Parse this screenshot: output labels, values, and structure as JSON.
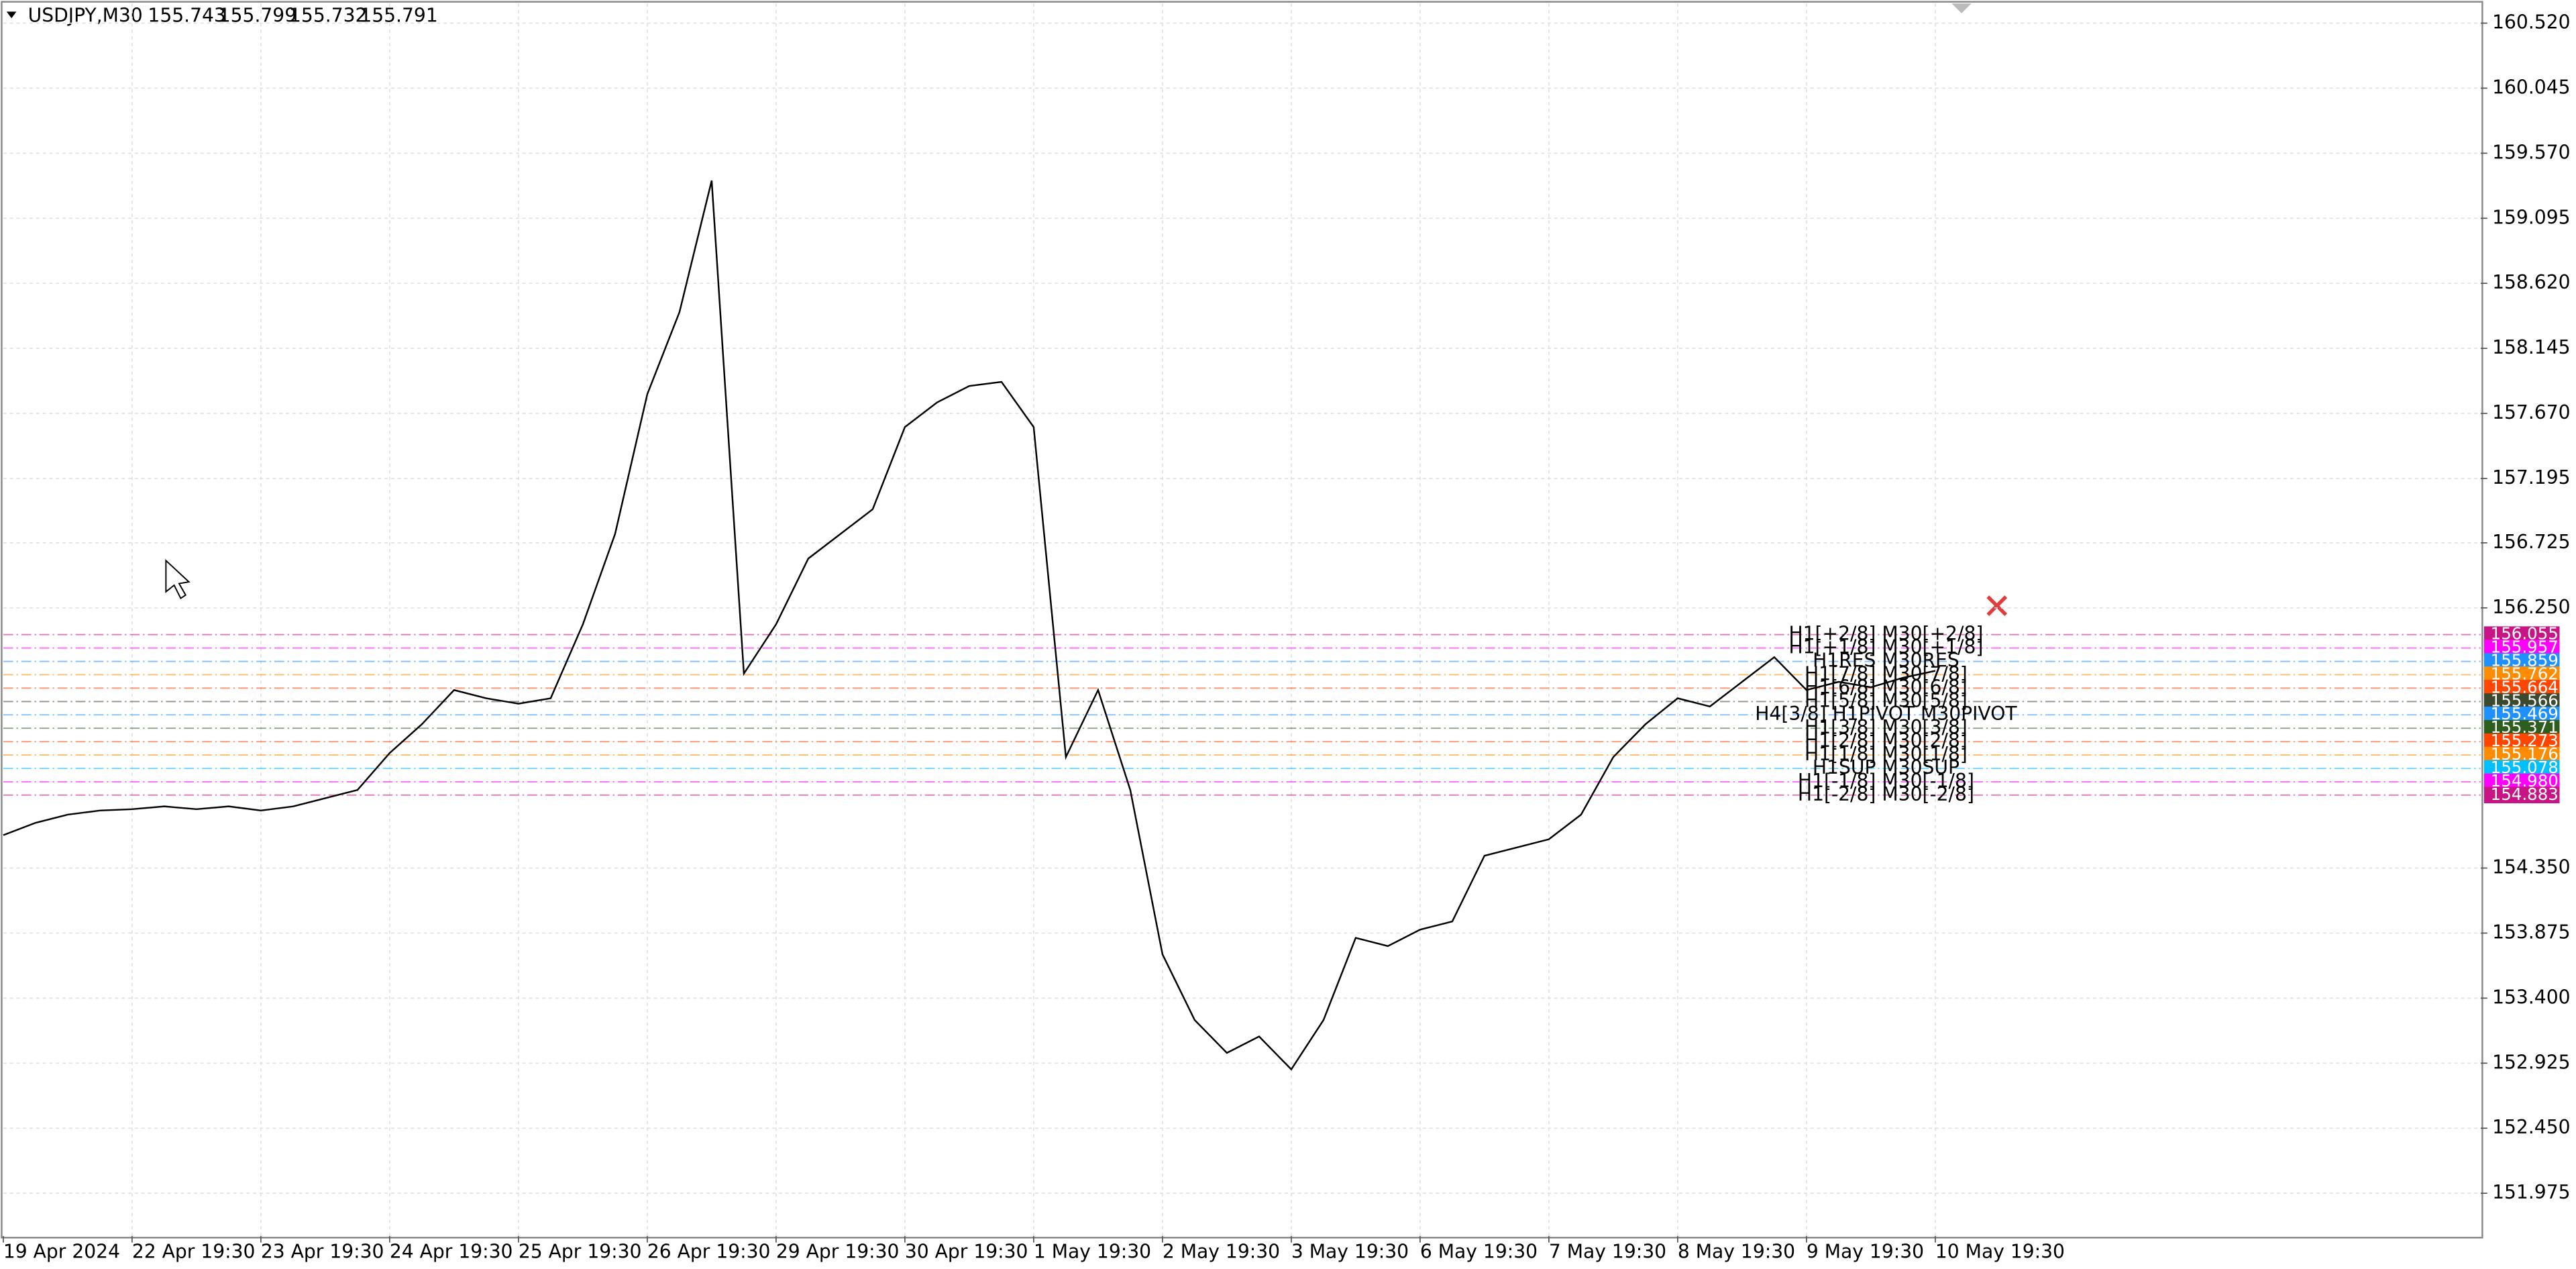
{
  "chart_data": {
    "type": "line",
    "title": "USDJPY,M30",
    "quote": [
      155.743,
      155.799,
      155.732,
      155.791
    ],
    "color": "#000000",
    "categories": [
      "19 Apr 2024",
      null,
      null,
      null,
      "22 Apr 19:30",
      null,
      null,
      null,
      "23 Apr 19:30",
      null,
      null,
      null,
      "24 Apr 19:30",
      null,
      null,
      null,
      "25 Apr 19:30",
      null,
      null,
      null,
      "26 Apr 19:30",
      null,
      null,
      null,
      "29 Apr 19:30",
      null,
      null,
      null,
      "30 Apr 19:30",
      null,
      null,
      null,
      "1 May 19:30",
      null,
      null,
      null,
      "2 May 19:30",
      null,
      null,
      null,
      "3 May 19:30",
      null,
      null,
      null,
      "6 May 19:30",
      null,
      null,
      null,
      "7 May 19:30",
      null,
      null,
      null,
      "8 May 19:30",
      null,
      null,
      null,
      "9 May 19:30",
      null,
      null,
      null,
      "10 May 19:30"
    ],
    "values": [
      154.59,
      154.68,
      154.74,
      154.77,
      154.78,
      154.8,
      154.78,
      154.8,
      154.77,
      154.8,
      154.86,
      154.92,
      155.19,
      155.4,
      155.65,
      155.59,
      155.55,
      155.59,
      156.13,
      156.79,
      157.81,
      158.41,
      159.37,
      155.77,
      156.13,
      156.61,
      156.79,
      156.97,
      157.57,
      157.75,
      157.87,
      157.9,
      157.57,
      155.16,
      155.65,
      154.92,
      153.72,
      153.24,
      153.0,
      153.12,
      152.88,
      153.24,
      153.84,
      153.78,
      153.9,
      153.96,
      154.44,
      154.5,
      154.56,
      154.74,
      155.16,
      155.4,
      155.59,
      155.53,
      155.71,
      155.89,
      155.65,
      155.71,
      155.67,
      155.74,
      155.79
    ],
    "ylim": [
      151.663,
      160.664
    ],
    "yticks": [
      151.975,
      {
        "value": 152.45,
        "label": "152.450"
      },
      152.925,
      {
        "value": 153.4,
        "label": "153.400"
      },
      153.875,
      {
        "value": 154.35,
        "label": "154.350"
      },
      {
        "value": 156.25,
        "label": "156.250"
      },
      156.725,
      157.195,
      {
        "value": 157.67,
        "label": "157.670"
      },
      158.145,
      {
        "value": 158.62,
        "label": "158.620"
      },
      159.095,
      {
        "value": 159.57,
        "label": "159.570"
      },
      160.045,
      {
        "value": 160.52,
        "label": "160.520"
      }
    ],
    "grid": true,
    "levels": [
      {
        "name": "H1[+2/8] M30[+2/8]",
        "value": 156.055,
        "color": "#c71585"
      },
      {
        "name": "H1[+1/8] M30[+1/8]",
        "value": 155.957,
        "color": "#ff00ff"
      },
      {
        "name": "H1RES M30RES",
        "value": 155.859,
        "color": "#1e90ff"
      },
      {
        "name": "H1[7/8] M30[7/8]",
        "value": 155.762,
        "color": "#ff8c00"
      },
      {
        "name": "H1[6/8] M30[6/8]",
        "value": 155.664,
        "color": "#ff4500"
      },
      {
        "name": "H1[5/8] M30[5/8]",
        "value": 155.566,
        "color": "#3b4a2f"
      },
      {
        "name": "H4[3/8] H1PIVOT M30PIVOT",
        "value": 155.469,
        "color": "#1e90ff"
      },
      {
        "name": "H1[3/8] M30[3/8]",
        "value": 155.371,
        "color": "#2e5e1e"
      },
      {
        "name": "H1[2/8] M30[2/8]",
        "value": 155.273,
        "color": "#ff4500"
      },
      {
        "name": "H1[1/8] M30[1/8]",
        "value": 155.176,
        "color": "#ff8c00"
      },
      {
        "name": "H1SUP M30SUP",
        "value": 155.078,
        "color": "#00bfff"
      },
      {
        "name": "H1[-1/8] M30[-1/8]",
        "value": 154.98,
        "value_label": "154.980",
        "color": "#ff00ff"
      },
      {
        "name": "H1[-2/8] M30[-2/8]",
        "value": 154.883,
        "color": "#c71585"
      }
    ]
  }
}
